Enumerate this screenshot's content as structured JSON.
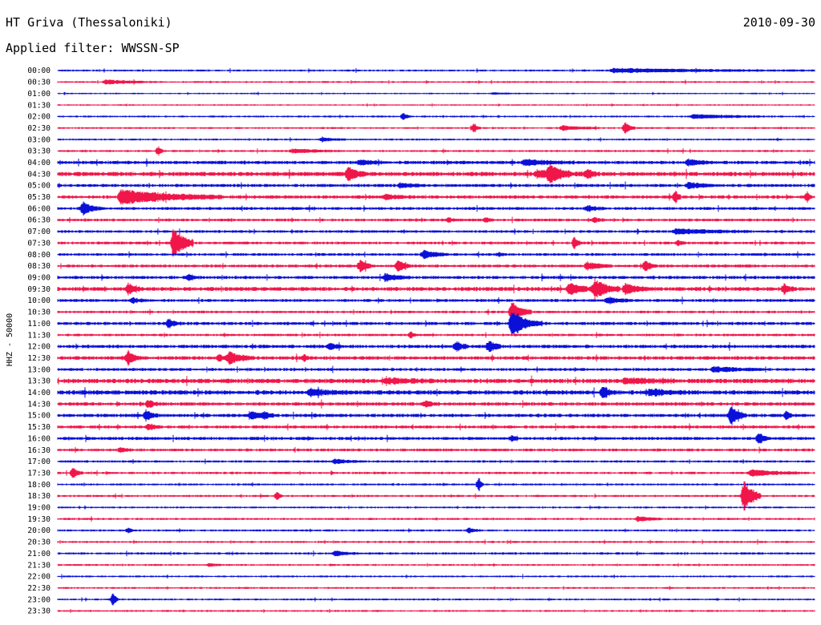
{
  "header": {
    "station_title": "HT Griva (Thessaloniki)",
    "date": "2010-09-30",
    "filter_label": "Applied filter:",
    "filter_value": "WWSSN-SP"
  },
  "chart_data": {
    "type": "line",
    "subtype": "helicorder",
    "side_label": "HHZ - 50000",
    "row_labels": [
      "00:00",
      "00:30",
      "01:00",
      "01:30",
      "02:00",
      "02:30",
      "03:00",
      "03:30",
      "04:00",
      "04:30",
      "05:00",
      "05:30",
      "06:00",
      "06:30",
      "07:00",
      "07:30",
      "08:00",
      "08:30",
      "09:00",
      "09:30",
      "10:00",
      "10:30",
      "11:00",
      "11:30",
      "12:00",
      "12:30",
      "13:00",
      "13:30",
      "14:00",
      "14:30",
      "15:00",
      "15:30",
      "16:00",
      "16:30",
      "17:00",
      "17:30",
      "18:00",
      "18:30",
      "19:00",
      "19:30",
      "20:00",
      "20:30",
      "21:00",
      "21:30",
      "22:00",
      "22:30",
      "23:00",
      "23:30"
    ],
    "minutes_per_row": 30,
    "colors": [
      "#0a10d8",
      "#f0164a"
    ],
    "noise_levels": [
      0.9,
      0.9,
      0.7,
      0.7,
      0.9,
      0.9,
      0.9,
      1.0,
      1.6,
      2.0,
      1.5,
      1.6,
      1.4,
      1.3,
      1.3,
      1.3,
      1.3,
      1.4,
      1.5,
      1.9,
      1.4,
      1.2,
      1.5,
      1.2,
      1.6,
      1.7,
      1.4,
      2.1,
      2.1,
      1.7,
      1.6,
      1.5,
      1.5,
      1.3,
      1.1,
      1.1,
      1.0,
      1.0,
      0.9,
      1.0,
      1.0,
      1.0,
      1.1,
      0.9,
      0.9,
      0.9,
      0.9,
      0.9
    ],
    "events": [
      {
        "row": 0,
        "minute": 22.0,
        "amplitude": 2.5,
        "duration": 8.0
      },
      {
        "row": 1,
        "minute": 1.9,
        "amplitude": 2.5,
        "duration": 2.0
      },
      {
        "row": 2,
        "minute": 17.3,
        "amplitude": 0.8,
        "duration": 1.5
      },
      {
        "row": 4,
        "minute": 13.7,
        "amplitude": 4,
        "duration": 0.3
      },
      {
        "row": 4,
        "minute": 25.2,
        "amplitude": 2.5,
        "duration": 3.0
      },
      {
        "row": 5,
        "minute": 16.5,
        "amplitude": 5,
        "duration": 0.3
      },
      {
        "row": 5,
        "minute": 20.0,
        "amplitude": 3,
        "duration": 1.5
      },
      {
        "row": 5,
        "minute": 22.5,
        "amplitude": 7,
        "duration": 0.4
      },
      {
        "row": 6,
        "minute": 10.5,
        "amplitude": 2,
        "duration": 1.0
      },
      {
        "row": 7,
        "minute": 4.0,
        "amplitude": 6,
        "duration": 0.2
      },
      {
        "row": 7,
        "minute": 9.3,
        "amplitude": 2.5,
        "duration": 2.0
      },
      {
        "row": 8,
        "minute": 12.0,
        "amplitude": 3,
        "duration": 1.0
      },
      {
        "row": 8,
        "minute": 18.5,
        "amplitude": 3,
        "duration": 2.0
      },
      {
        "row": 8,
        "minute": 25.0,
        "amplitude": 3.5,
        "duration": 1.0
      },
      {
        "row": 9,
        "minute": 11.5,
        "amplitude": 8,
        "duration": 0.8
      },
      {
        "row": 9,
        "minute": 19.0,
        "amplitude": 4,
        "duration": 2.0
      },
      {
        "row": 9,
        "minute": 19.5,
        "amplitude": 10,
        "duration": 0.8
      },
      {
        "row": 9,
        "minute": 21.0,
        "amplitude": 5,
        "duration": 0.5
      },
      {
        "row": 10,
        "minute": 13.6,
        "amplitude": 3,
        "duration": 1.0
      },
      {
        "row": 10,
        "minute": 25.0,
        "amplitude": 4,
        "duration": 1.0
      },
      {
        "row": 11,
        "minute": 2.5,
        "amplitude": 9,
        "duration": 4.0
      },
      {
        "row": 11,
        "minute": 13.0,
        "amplitude": 3,
        "duration": 1.0
      },
      {
        "row": 11,
        "minute": 24.5,
        "amplitude": 9,
        "duration": 0.2
      },
      {
        "row": 11,
        "minute": 29.7,
        "amplitude": 6,
        "duration": 0.2
      },
      {
        "row": 12,
        "minute": 1.0,
        "amplitude": 8,
        "duration": 0.7
      },
      {
        "row": 12,
        "minute": 21.0,
        "amplitude": 3,
        "duration": 0.8
      },
      {
        "row": 13,
        "minute": 15.5,
        "amplitude": 3,
        "duration": 0.3
      },
      {
        "row": 13,
        "minute": 17.0,
        "amplitude": 3,
        "duration": 0.3
      },
      {
        "row": 13,
        "minute": 21.3,
        "amplitude": 3,
        "duration": 0.4
      },
      {
        "row": 14,
        "minute": 24.5,
        "amplitude": 3,
        "duration": 3.0
      },
      {
        "row": 15,
        "minute": 4.6,
        "amplitude": 20,
        "duration": 0.8
      },
      {
        "row": 15,
        "minute": 20.5,
        "amplitude": 9,
        "duration": 0.2
      },
      {
        "row": 15,
        "minute": 24.6,
        "amplitude": 3,
        "duration": 0.3
      },
      {
        "row": 16,
        "minute": 14.5,
        "amplitude": 5,
        "duration": 1.0
      },
      {
        "row": 16,
        "minute": 17.5,
        "amplitude": 2,
        "duration": 0.3
      },
      {
        "row": 17,
        "minute": 12.0,
        "amplitude": 8,
        "duration": 0.5
      },
      {
        "row": 17,
        "minute": 13.5,
        "amplitude": 7,
        "duration": 0.5
      },
      {
        "row": 17,
        "minute": 21.0,
        "amplitude": 5,
        "duration": 1.0
      },
      {
        "row": 17,
        "minute": 23.3,
        "amplitude": 7,
        "duration": 0.5
      },
      {
        "row": 18,
        "minute": 5.2,
        "amplitude": 4,
        "duration": 0.4
      },
      {
        "row": 18,
        "minute": 13.0,
        "amplitude": 4,
        "duration": 1.0
      },
      {
        "row": 19,
        "minute": 2.8,
        "amplitude": 6,
        "duration": 0.5
      },
      {
        "row": 19,
        "minute": 20.3,
        "amplitude": 7,
        "duration": 1.0
      },
      {
        "row": 19,
        "minute": 21.3,
        "amplitude": 12,
        "duration": 1.0
      },
      {
        "row": 19,
        "minute": 22.5,
        "amplitude": 6,
        "duration": 1.0
      },
      {
        "row": 19,
        "minute": 28.8,
        "amplitude": 5,
        "duration": 0.5
      },
      {
        "row": 20,
        "minute": 3.0,
        "amplitude": 3,
        "duration": 0.5
      },
      {
        "row": 20,
        "minute": 21.8,
        "amplitude": 4,
        "duration": 1.0
      },
      {
        "row": 21,
        "minute": 18.0,
        "amplitude": 13,
        "duration": 0.8
      },
      {
        "row": 22,
        "minute": 4.4,
        "amplitude": 5,
        "duration": 0.5
      },
      {
        "row": 22,
        "minute": 18.0,
        "amplitude": 14,
        "duration": 1.2
      },
      {
        "row": 23,
        "minute": 14.0,
        "amplitude": 4,
        "duration": 0.3
      },
      {
        "row": 24,
        "minute": 15.8,
        "amplitude": 6,
        "duration": 0.5
      },
      {
        "row": 24,
        "minute": 17.1,
        "amplitude": 8,
        "duration": 0.5
      },
      {
        "row": 24,
        "minute": 10.8,
        "amplitude": 4,
        "duration": 0.5
      },
      {
        "row": 25,
        "minute": 2.8,
        "amplitude": 9,
        "duration": 0.5
      },
      {
        "row": 25,
        "minute": 6.4,
        "amplitude": 4,
        "duration": 0.3
      },
      {
        "row": 25,
        "minute": 6.8,
        "amplitude": 7,
        "duration": 1.0
      },
      {
        "row": 25,
        "minute": 9.8,
        "amplitude": 4,
        "duration": 0.2
      },
      {
        "row": 26,
        "minute": 26.0,
        "amplitude": 3,
        "duration": 2.0
      },
      {
        "row": 27,
        "minute": 13.0,
        "amplitude": 3,
        "duration": 2.0
      },
      {
        "row": 27,
        "minute": 22.5,
        "amplitude": 3,
        "duration": 2.0
      },
      {
        "row": 28,
        "minute": 21.6,
        "amplitude": 7,
        "duration": 0.5
      },
      {
        "row": 28,
        "minute": 10.0,
        "amplitude": 3.5,
        "duration": 1.5
      },
      {
        "row": 28,
        "minute": 23.5,
        "amplitude": 3.5,
        "duration": 1.5
      },
      {
        "row": 29,
        "minute": 3.6,
        "amplitude": 4,
        "duration": 0.5
      },
      {
        "row": 29,
        "minute": 14.6,
        "amplitude": 3,
        "duration": 0.5
      },
      {
        "row": 30,
        "minute": 3.5,
        "amplitude": 6,
        "duration": 0.5
      },
      {
        "row": 30,
        "minute": 7.7,
        "amplitude": 6,
        "duration": 0.5
      },
      {
        "row": 30,
        "minute": 8.2,
        "amplitude": 4,
        "duration": 0.5
      },
      {
        "row": 30,
        "minute": 26.7,
        "amplitude": 12,
        "duration": 0.6
      },
      {
        "row": 30,
        "minute": 28.9,
        "amplitude": 6,
        "duration": 0.2
      },
      {
        "row": 31,
        "minute": 3.6,
        "amplitude": 4,
        "duration": 0.5
      },
      {
        "row": 32,
        "minute": 18.0,
        "amplitude": 3,
        "duration": 0.3
      },
      {
        "row": 32,
        "minute": 27.8,
        "amplitude": 6,
        "duration": 0.5
      },
      {
        "row": 33,
        "minute": 2.5,
        "amplitude": 3,
        "duration": 0.5
      },
      {
        "row": 34,
        "minute": 11.0,
        "amplitude": 3,
        "duration": 1.0
      },
      {
        "row": 35,
        "minute": 0.6,
        "amplitude": 6,
        "duration": 0.4
      },
      {
        "row": 35,
        "minute": 27.5,
        "amplitude": 4,
        "duration": 2.0
      },
      {
        "row": 36,
        "minute": 16.7,
        "amplitude": 8,
        "duration": 0.2
      },
      {
        "row": 37,
        "minute": 8.7,
        "amplitude": 6,
        "duration": 0.2
      },
      {
        "row": 37,
        "minute": 27.2,
        "amplitude": 20,
        "duration": 0.7
      },
      {
        "row": 39,
        "minute": 23.0,
        "amplitude": 3,
        "duration": 1.0
      },
      {
        "row": 40,
        "minute": 2.8,
        "amplitude": 3,
        "duration": 0.3
      },
      {
        "row": 40,
        "minute": 16.3,
        "amplitude": 3,
        "duration": 0.5
      },
      {
        "row": 42,
        "minute": 11.0,
        "amplitude": 3,
        "duration": 0.8
      },
      {
        "row": 43,
        "minute": 6.0,
        "amplitude": 2,
        "duration": 0.5
      },
      {
        "row": 46,
        "minute": 2.2,
        "amplitude": 10,
        "duration": 0.2
      }
    ]
  }
}
